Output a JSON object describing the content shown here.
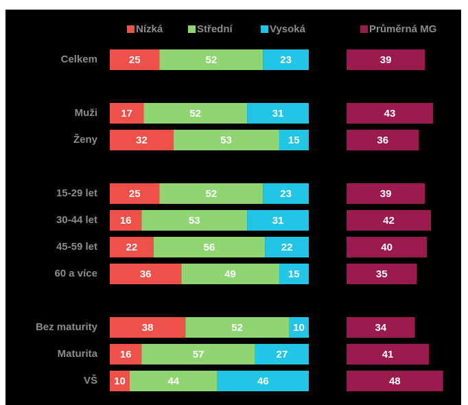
{
  "chart_data": [
    {
      "type": "bar",
      "orientation": "horizontal",
      "stacked": true,
      "categories": [
        "Celkem",
        null,
        "Muži",
        "Ženy",
        null,
        "15-29 let",
        "30-44 let",
        "45-59 let",
        "60 a více",
        null,
        "Bez maturity",
        "Maturita",
        "VŠ"
      ],
      "series": [
        {
          "name": "Nízká",
          "color": "#f0504a",
          "values": [
            25,
            null,
            17,
            32,
            null,
            25,
            16,
            22,
            36,
            null,
            38,
            16,
            10
          ]
        },
        {
          "name": "Střední",
          "color": "#8fd672",
          "values": [
            52,
            null,
            52,
            53,
            null,
            52,
            53,
            56,
            49,
            null,
            52,
            57,
            44
          ]
        },
        {
          "name": "Vysoká",
          "color": "#22c5e5",
          "values": [
            23,
            null,
            31,
            15,
            null,
            23,
            31,
            22,
            15,
            null,
            10,
            27,
            46
          ]
        }
      ]
    },
    {
      "type": "bar",
      "orientation": "horizontal",
      "series": [
        {
          "name": "Průměrná MG",
          "color": "#9b1b4f",
          "values": [
            39,
            null,
            43,
            36,
            null,
            39,
            42,
            40,
            35,
            null,
            34,
            41,
            48
          ]
        }
      ]
    }
  ]
}
